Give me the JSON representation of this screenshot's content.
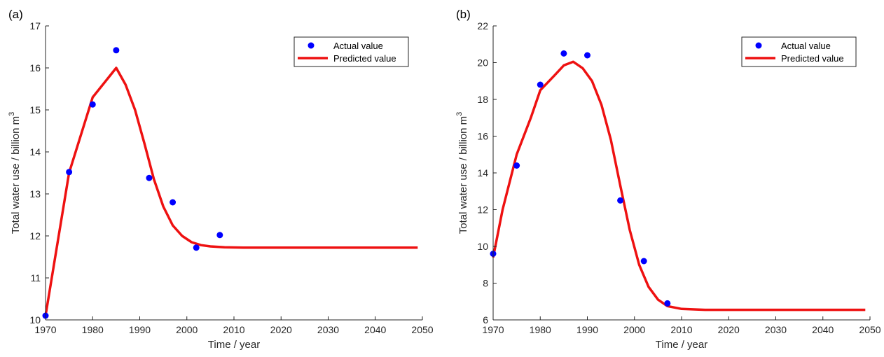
{
  "figure": {
    "colors": {
      "actual": "#0000ff",
      "predicted": "#ee1111",
      "axis": "#262626",
      "legend_border": "#262626"
    }
  },
  "chart_data": [
    {
      "panel_label": "(a)",
      "type": "line",
      "xlabel": "Time / year",
      "ylabel": "Total water use / billion m",
      "ylabel_superscript": "3",
      "xlim": [
        1970,
        2050
      ],
      "ylim": [
        10,
        17
      ],
      "xticks": [
        1970,
        1980,
        1990,
        2000,
        2010,
        2020,
        2030,
        2040,
        2050
      ],
      "yticks": [
        10,
        11,
        12,
        13,
        14,
        15,
        16,
        17
      ],
      "xtick_labels": [
        "1970",
        "1980",
        "1990",
        "2000",
        "2010",
        "2020",
        "2030",
        "2040",
        "2050"
      ],
      "ytick_labels": [
        "10",
        "11",
        "12",
        "13",
        "14",
        "15",
        "16",
        "17"
      ],
      "legend": {
        "placement": "top-right",
        "entries": [
          "Actual value",
          "Predicted value"
        ]
      },
      "series": [
        {
          "name": "Actual value",
          "kind": "scatter",
          "x": [
            1970,
            1975,
            1980,
            1985,
            1992,
            1997,
            2002,
            2007
          ],
          "y": [
            10.1,
            13.52,
            15.13,
            16.42,
            13.38,
            12.8,
            11.72,
            12.02
          ]
        },
        {
          "name": "Predicted value",
          "kind": "line",
          "x": [
            1970,
            1975,
            1980,
            1985,
            1987,
            1989,
            1991,
            1993,
            1995,
            1997,
            1999,
            2001,
            2003,
            2005,
            2008,
            2012,
            2020,
            2030,
            2040,
            2049
          ],
          "y": [
            10.1,
            13.5,
            15.3,
            16.0,
            15.6,
            15.0,
            14.2,
            13.35,
            12.7,
            12.25,
            12.0,
            11.85,
            11.78,
            11.75,
            11.73,
            11.72,
            11.72,
            11.72,
            11.72,
            11.72
          ]
        }
      ]
    },
    {
      "panel_label": "(b)",
      "type": "line",
      "xlabel": "Time / year",
      "ylabel": "Total water use / billion m",
      "ylabel_superscript": "3",
      "xlim": [
        1970,
        2050
      ],
      "ylim": [
        6,
        22
      ],
      "xticks": [
        1970,
        1980,
        1990,
        2000,
        2010,
        2020,
        2030,
        2040,
        2050
      ],
      "yticks": [
        6,
        8,
        10,
        12,
        14,
        16,
        18,
        20,
        22
      ],
      "xtick_labels": [
        "1970",
        "1980",
        "1990",
        "2000",
        "2010",
        "2020",
        "2030",
        "2040",
        "2050"
      ],
      "ytick_labels": [
        "6",
        "8",
        "10",
        "12",
        "14",
        "16",
        "18",
        "20",
        "22"
      ],
      "legend": {
        "placement": "top-right",
        "entries": [
          "Actual value",
          "Predicted value"
        ]
      },
      "series": [
        {
          "name": "Actual value",
          "kind": "scatter",
          "x": [
            1970,
            1975,
            1980,
            1985,
            1990,
            1997,
            2002,
            2007
          ],
          "y": [
            9.6,
            14.4,
            18.8,
            20.5,
            20.4,
            12.5,
            9.2,
            6.9
          ]
        },
        {
          "name": "Predicted value",
          "kind": "line",
          "x": [
            1970,
            1972,
            1975,
            1978,
            1980,
            1983,
            1985,
            1987,
            1989,
            1991,
            1993,
            1995,
            1997,
            1999,
            2001,
            2003,
            2005,
            2007,
            2010,
            2015,
            2020,
            2030,
            2040,
            2049
          ],
          "y": [
            9.4,
            12.0,
            15.0,
            17.0,
            18.5,
            19.3,
            19.85,
            20.05,
            19.7,
            19.0,
            17.7,
            15.8,
            13.3,
            10.9,
            9.0,
            7.8,
            7.1,
            6.75,
            6.6,
            6.55,
            6.55,
            6.55,
            6.55,
            6.55
          ]
        }
      ]
    }
  ]
}
